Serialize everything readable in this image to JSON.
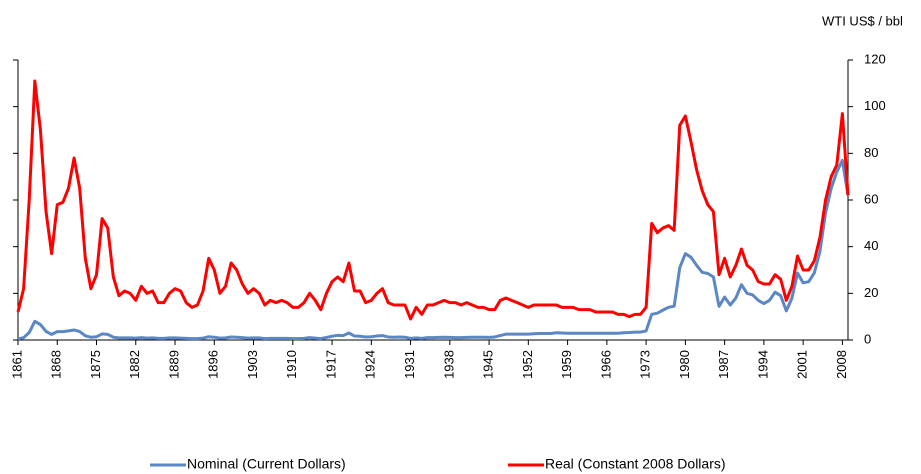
{
  "chart_data": {
    "type": "line",
    "y_axis_label": "WTI US$ / bbl",
    "x": [
      1861,
      1862,
      1863,
      1864,
      1865,
      1866,
      1867,
      1868,
      1869,
      1870,
      1871,
      1872,
      1873,
      1874,
      1875,
      1876,
      1877,
      1878,
      1879,
      1880,
      1881,
      1882,
      1883,
      1884,
      1885,
      1886,
      1887,
      1888,
      1889,
      1890,
      1891,
      1892,
      1893,
      1894,
      1895,
      1896,
      1897,
      1898,
      1899,
      1900,
      1901,
      1902,
      1903,
      1904,
      1905,
      1906,
      1907,
      1908,
      1909,
      1910,
      1911,
      1912,
      1913,
      1914,
      1915,
      1916,
      1917,
      1918,
      1919,
      1920,
      1921,
      1922,
      1923,
      1924,
      1925,
      1926,
      1927,
      1928,
      1929,
      1930,
      1931,
      1932,
      1933,
      1934,
      1935,
      1936,
      1937,
      1938,
      1939,
      1940,
      1941,
      1942,
      1943,
      1944,
      1945,
      1946,
      1947,
      1948,
      1949,
      1950,
      1951,
      1952,
      1953,
      1954,
      1955,
      1956,
      1957,
      1958,
      1959,
      1960,
      1961,
      1962,
      1963,
      1964,
      1965,
      1966,
      1967,
      1968,
      1969,
      1970,
      1971,
      1972,
      1973,
      1974,
      1975,
      1976,
      1977,
      1978,
      1979,
      1980,
      1981,
      1982,
      1983,
      1984,
      1985,
      1986,
      1987,
      1988,
      1989,
      1990,
      1991,
      1992,
      1993,
      1994,
      1995,
      1996,
      1997,
      1998,
      1999,
      2000,
      2001,
      2002,
      2003,
      2004,
      2005,
      2006,
      2007,
      2008,
      2009
    ],
    "series": [
      {
        "name": "Nominal (Current Dollars)",
        "color": "#5b87c5",
        "values": [
          0.5,
          1,
          3.2,
          8,
          6.6,
          3.7,
          2.4,
          3.6,
          3.6,
          3.9,
          4.3,
          3.6,
          1.8,
          1.2,
          1.4,
          2.6,
          2.4,
          1.2,
          0.9,
          0.9,
          0.9,
          0.8,
          1,
          0.8,
          0.9,
          0.7,
          0.7,
          0.9,
          0.9,
          0.8,
          0.7,
          0.6,
          0.6,
          0.8,
          1.4,
          1.2,
          0.8,
          0.9,
          1.3,
          1.2,
          1,
          0.8,
          0.9,
          0.9,
          0.6,
          0.7,
          0.7,
          0.7,
          0.7,
          0.6,
          0.6,
          0.7,
          1,
          0.8,
          0.6,
          1.1,
          1.6,
          2,
          1.9,
          3,
          1.7,
          1.6,
          1.3,
          1.4,
          1.7,
          1.9,
          1.3,
          1.2,
          1.3,
          1.2,
          0.7,
          0.9,
          0.7,
          1,
          1,
          1.1,
          1.2,
          1.1,
          1,
          1,
          1.1,
          1.2,
          1.2,
          1.2,
          1.1,
          1.3,
          1.9,
          2.5,
          2.5,
          2.5,
          2.5,
          2.5,
          2.7,
          2.8,
          2.8,
          2.8,
          3.1,
          3,
          2.9,
          2.9,
          2.9,
          2.9,
          2.9,
          2.9,
          2.9,
          2.9,
          2.9,
          2.9,
          3.1,
          3.2,
          3.4,
          3.4,
          3.9,
          11,
          11.5,
          12.8,
          14,
          14.5,
          31,
          37,
          35.5,
          32,
          29,
          28.5,
          27,
          14.4,
          18.4,
          15,
          18,
          23.7,
          20,
          19.3,
          17,
          15.6,
          17,
          20.5,
          19,
          12.5,
          17.9,
          28.7,
          24.5,
          25,
          28.8,
          38,
          54.5,
          65,
          72,
          77,
          62
        ]
      },
      {
        "name": "Real (Constant 2008 Dollars)",
        "color": "#ff0000",
        "values": [
          12,
          22,
          60,
          111,
          90,
          55,
          37,
          58,
          59,
          65,
          78,
          65,
          35,
          22,
          28,
          52,
          48,
          27,
          19,
          21,
          20,
          17,
          23,
          20,
          21,
          16,
          16,
          20,
          22,
          21,
          16,
          14,
          15,
          21,
          35,
          30,
          20,
          23,
          33,
          30,
          24,
          20,
          22,
          20,
          15,
          17,
          16,
          17,
          16,
          14,
          14,
          16,
          20,
          17,
          13,
          20,
          25,
          27,
          25,
          33,
          21,
          21,
          16,
          17,
          20,
          22,
          16,
          15,
          15,
          15,
          9,
          14,
          11,
          15,
          15,
          16,
          17,
          16,
          16,
          15,
          16,
          15,
          14,
          14,
          13,
          13,
          17,
          18,
          17,
          16,
          15,
          14,
          15,
          15,
          15,
          15,
          15,
          14,
          14,
          14,
          13,
          13,
          13,
          12,
          12,
          12,
          12,
          11,
          11,
          10,
          11,
          11,
          14,
          50,
          46,
          48,
          49,
          47,
          92,
          96,
          85,
          73,
          64,
          58,
          55,
          28,
          35,
          27,
          32,
          39,
          32,
          30,
          25,
          24,
          24,
          28,
          26,
          17,
          23,
          36,
          30,
          30,
          34,
          44,
          60,
          70,
          75,
          97,
          62
        ]
      }
    ],
    "xlim": [
      1861,
      2009
    ],
    "xticks": [
      1861,
      1868,
      1875,
      1882,
      1889,
      1896,
      1903,
      1910,
      1917,
      1924,
      1931,
      1938,
      1945,
      1952,
      1959,
      1966,
      1973,
      1980,
      1987,
      1994,
      2001,
      2008
    ],
    "ylim": [
      0,
      120
    ],
    "yticks": [
      0,
      20,
      40,
      60,
      80,
      100,
      120
    ],
    "legend": "bottom"
  }
}
